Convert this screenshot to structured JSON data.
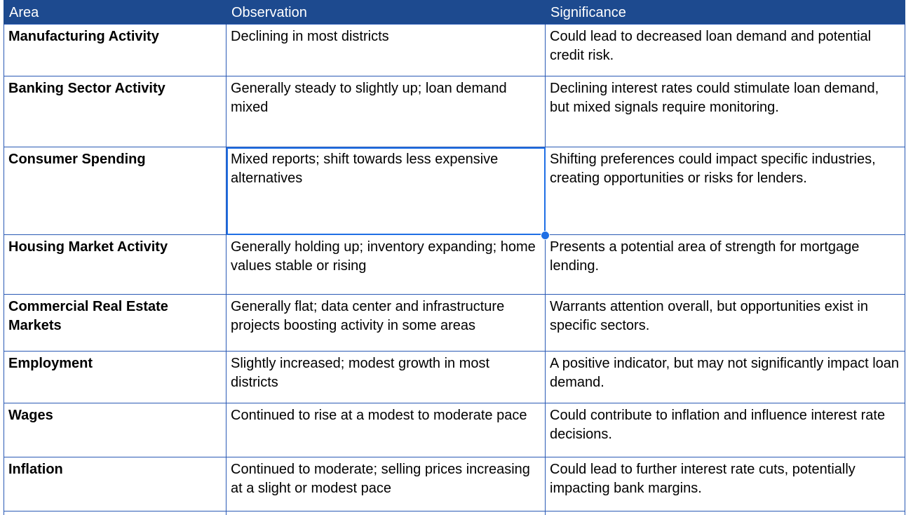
{
  "headers": {
    "area": "Area",
    "observation": "Observation",
    "significance": "Significance"
  },
  "rows": [
    {
      "area": "Manufacturing Activity",
      "observation": "Declining in most districts",
      "significance": "Could lead to decreased loan demand and potential credit risk."
    },
    {
      "area": "Banking Sector Activity",
      "observation": "Generally steady to slightly up; loan demand mixed",
      "significance": "Declining interest rates could stimulate loan demand, but mixed signals require monitoring."
    },
    {
      "area": "Consumer Spending",
      "observation": "Mixed reports; shift towards less expensive alternatives",
      "significance": "Shifting preferences could impact specific industries, creating opportunities or risks for lenders."
    },
    {
      "area": "Housing Market Activity",
      "observation": "Generally holding up; inventory expanding; home values stable or rising",
      "significance": "Presents a potential area of strength for mortgage lending."
    },
    {
      "area": "Commercial Real Estate Markets",
      "observation": "Generally flat; data center and infrastructure projects boosting activity in some areas",
      "significance": "Warrants attention overall, but opportunities exist in specific sectors."
    },
    {
      "area": "Employment",
      "observation": "Slightly increased; modest growth in most districts",
      "significance": "A positive indicator, but may not significantly impact loan demand."
    },
    {
      "area": "Wages",
      "observation": "Continued to rise at a modest to moderate pace",
      "significance": "Could contribute to inflation and influence interest rate decisions."
    },
    {
      "area": "Inflation",
      "observation": "Continued to moderate; selling prices increasing at a slight or modest pace",
      "significance": "Could lead to further interest rate cuts, potentially impacting bank margins."
    }
  ],
  "selection": {
    "accent_color": "#1f6fe5",
    "selected_row": 3,
    "selected_column": "observation"
  },
  "colors": {
    "header_background": "#1d4a8f",
    "header_text": "#ffffff",
    "grid_border": "#2a5ab5"
  }
}
